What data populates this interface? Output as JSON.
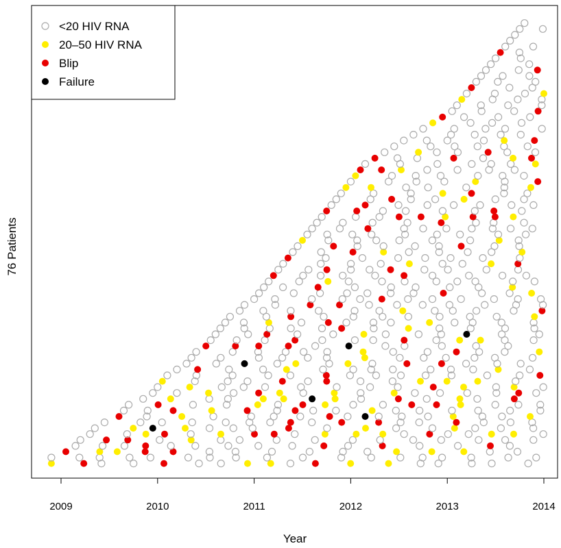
{
  "chart_data": {
    "type": "scatter",
    "xlabel": "Year",
    "ylabel": "76 Patients",
    "xlim": [
      2008.7,
      2014.05
    ],
    "ylim": [
      -1.5,
      79
    ],
    "x_ticks": [
      2009,
      2010,
      2011,
      2012,
      2013,
      2014
    ],
    "grid": false,
    "legend_position": "top-left",
    "series": [
      {
        "name": "<20 HIV RNA",
        "color": "#aaaaaa",
        "fill": "none",
        "values": []
      },
      {
        "name": "20–50 HIV RNA",
        "color": "#ffee00",
        "fill": "#ffee00",
        "values": []
      },
      {
        "name": "Blip",
        "color": "#e80000",
        "fill": "#e80000",
        "values": []
      },
      {
        "name": "Failure",
        "color": "#000000",
        "fill": "#000000",
        "values": [
          [
            2009.95,
            7
          ],
          [
            2010.9,
            18
          ],
          [
            2011.6,
            12
          ],
          [
            2011.98,
            21
          ],
          [
            2012.15,
            9
          ],
          [
            2013.2,
            23
          ]
        ]
      }
    ],
    "participants": [
      {
        "id": 1,
        "start": 2008.9,
        "end": 2014.0
      },
      {
        "id": 2,
        "start": 2008.9,
        "end": 2014.0
      },
      {
        "id": 3,
        "start": 2009.05,
        "end": 2014.0
      },
      {
        "id": 4,
        "start": 2009.15,
        "end": 2014.0
      },
      {
        "id": 5,
        "start": 2009.2,
        "end": 2014.0
      },
      {
        "id": 6,
        "start": 2009.3,
        "end": 2014.0
      },
      {
        "id": 7,
        "start": 2009.35,
        "end": 2014.0
      },
      {
        "id": 8,
        "start": 2009.45,
        "end": 2014.0
      },
      {
        "id": 9,
        "start": 2009.6,
        "end": 2014.0
      },
      {
        "id": 10,
        "start": 2009.65,
        "end": 2014.0
      },
      {
        "id": 11,
        "start": 2009.7,
        "end": 2014.0
      },
      {
        "id": 12,
        "start": 2009.85,
        "end": 2014.0
      },
      {
        "id": 13,
        "start": 2009.95,
        "end": 2014.0
      },
      {
        "id": 14,
        "start": 2010.0,
        "end": 2014.0
      },
      {
        "id": 15,
        "start": 2010.05,
        "end": 2014.0
      },
      {
        "id": 16,
        "start": 2010.1,
        "end": 2014.0
      },
      {
        "id": 17,
        "start": 2010.2,
        "end": 2014.0
      },
      {
        "id": 18,
        "start": 2010.3,
        "end": 2014.0
      },
      {
        "id": 19,
        "start": 2010.35,
        "end": 2014.0
      },
      {
        "id": 20,
        "start": 2010.4,
        "end": 2014.0
      },
      {
        "id": 21,
        "start": 2010.5,
        "end": 2014.0
      },
      {
        "id": 22,
        "start": 2010.55,
        "end": 2014.0
      },
      {
        "id": 23,
        "start": 2010.6,
        "end": 2014.0
      },
      {
        "id": 24,
        "start": 2010.65,
        "end": 2014.0
      },
      {
        "id": 25,
        "start": 2010.7,
        "end": 2014.0
      },
      {
        "id": 26,
        "start": 2010.75,
        "end": 2014.0
      },
      {
        "id": 27,
        "start": 2010.85,
        "end": 2014.0
      },
      {
        "id": 28,
        "start": 2010.9,
        "end": 2014.0
      },
      {
        "id": 29,
        "start": 2011.0,
        "end": 2014.0
      },
      {
        "id": 30,
        "start": 2011.05,
        "end": 2014.0
      },
      {
        "id": 31,
        "start": 2011.1,
        "end": 2014.0
      },
      {
        "id": 32,
        "start": 2011.15,
        "end": 2014.0
      },
      {
        "id": 33,
        "start": 2011.2,
        "end": 2014.0
      },
      {
        "id": 34,
        "start": 2011.25,
        "end": 2014.0
      },
      {
        "id": 35,
        "start": 2011.3,
        "end": 2014.0
      },
      {
        "id": 36,
        "start": 2011.35,
        "end": 2014.0
      },
      {
        "id": 37,
        "start": 2011.4,
        "end": 2014.0
      },
      {
        "id": 38,
        "start": 2011.45,
        "end": 2014.0
      },
      {
        "id": 39,
        "start": 2011.5,
        "end": 2014.0
      },
      {
        "id": 40,
        "start": 2011.55,
        "end": 2014.0
      },
      {
        "id": 41,
        "start": 2011.6,
        "end": 2014.0
      },
      {
        "id": 42,
        "start": 2011.65,
        "end": 2014.0
      },
      {
        "id": 43,
        "start": 2011.7,
        "end": 2014.0
      },
      {
        "id": 44,
        "start": 2011.75,
        "end": 2014.0
      },
      {
        "id": 45,
        "start": 2011.8,
        "end": 2014.0
      },
      {
        "id": 46,
        "start": 2011.85,
        "end": 2014.0
      },
      {
        "id": 47,
        "start": 2011.9,
        "end": 2014.0
      },
      {
        "id": 48,
        "start": 2011.95,
        "end": 2014.0
      },
      {
        "id": 49,
        "start": 2012.0,
        "end": 2014.0
      },
      {
        "id": 50,
        "start": 2012.05,
        "end": 2014.0
      },
      {
        "id": 51,
        "start": 2012.1,
        "end": 2014.0
      },
      {
        "id": 52,
        "start": 2012.15,
        "end": 2014.0
      },
      {
        "id": 53,
        "start": 2012.25,
        "end": 2014.0
      },
      {
        "id": 54,
        "start": 2012.35,
        "end": 2014.0
      },
      {
        "id": 55,
        "start": 2012.45,
        "end": 2014.0
      },
      {
        "id": 56,
        "start": 2012.55,
        "end": 2014.0
      },
      {
        "id": 57,
        "start": 2012.65,
        "end": 2014.0
      },
      {
        "id": 58,
        "start": 2012.75,
        "end": 2014.0
      },
      {
        "id": 59,
        "start": 2012.85,
        "end": 2014.0
      },
      {
        "id": 60,
        "start": 2012.95,
        "end": 2014.0
      },
      {
        "id": 61,
        "start": 2013.05,
        "end": 2014.0
      },
      {
        "id": 62,
        "start": 2013.1,
        "end": 2014.0
      },
      {
        "id": 63,
        "start": 2013.15,
        "end": 2014.0
      },
      {
        "id": 64,
        "start": 2013.2,
        "end": 2014.0
      },
      {
        "id": 65,
        "start": 2013.25,
        "end": 2014.0
      },
      {
        "id": 66,
        "start": 2013.3,
        "end": 2014.0
      },
      {
        "id": 67,
        "start": 2013.35,
        "end": 2014.0
      },
      {
        "id": 68,
        "start": 2013.4,
        "end": 2014.0
      },
      {
        "id": 69,
        "start": 2013.45,
        "end": 2014.0
      },
      {
        "id": 70,
        "start": 2013.5,
        "end": 2014.0
      },
      {
        "id": 71,
        "start": 2013.55,
        "end": 2014.0
      },
      {
        "id": 72,
        "start": 2013.6,
        "end": 2014.0
      },
      {
        "id": 73,
        "start": 2013.65,
        "end": 2014.0
      },
      {
        "id": 74,
        "start": 2013.7,
        "end": 2014.0
      },
      {
        "id": 75,
        "start": 2013.75,
        "end": 2014.0
      },
      {
        "id": 76,
        "start": 2013.8,
        "end": 2014.0
      }
    ]
  }
}
